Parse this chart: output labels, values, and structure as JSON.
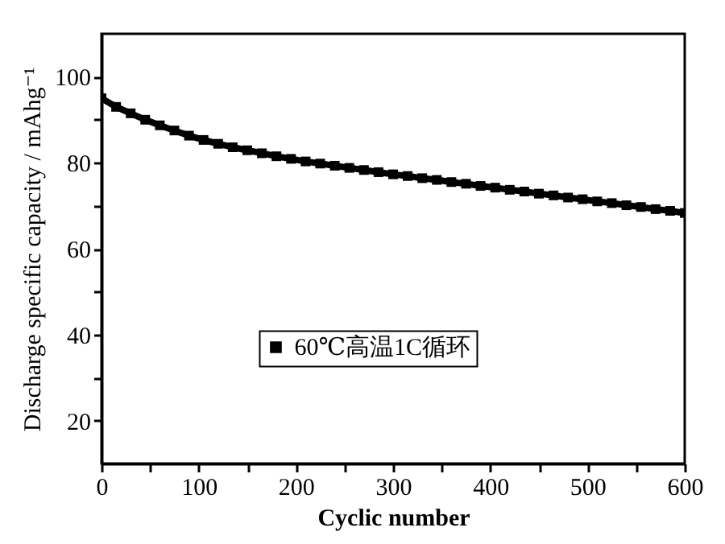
{
  "chart_data": {
    "type": "line",
    "xlabel": "Cyclic number",
    "ylabel": "Discharge specific capacity / mAhg⁻¹",
    "x": [
      0,
      15,
      30,
      45,
      60,
      75,
      90,
      105,
      120,
      135,
      150,
      165,
      180,
      195,
      210,
      225,
      240,
      255,
      270,
      285,
      300,
      315,
      330,
      345,
      360,
      375,
      390,
      405,
      420,
      435,
      450,
      465,
      480,
      495,
      510,
      525,
      540,
      555,
      570,
      585,
      600
    ],
    "series": [
      {
        "name": "60℃高温1C循环",
        "color": "#000000",
        "values": [
          95,
          93,
          91.5,
          90,
          88.7,
          87.5,
          86.3,
          85.3,
          84.4,
          83.6,
          82.9,
          82.2,
          81.5,
          80.9,
          80.3,
          79.8,
          79.3,
          78.8,
          78.3,
          77.8,
          77.3,
          76.9,
          76.4,
          76.0,
          75.5,
          75.1,
          74.6,
          74.2,
          73.7,
          73.3,
          72.8,
          72.4,
          71.9,
          71.5,
          71.0,
          70.6,
          70.1,
          69.7,
          69.2,
          68.8,
          68.3
        ]
      }
    ],
    "xlim": [
      0,
      600
    ],
    "ylim": [
      10,
      110
    ],
    "xticks": [
      0,
      {
        "value": 50,
        "label": null
      },
      100,
      {
        "value": 150,
        "label": null
      },
      200,
      {
        "value": 250,
        "label": null
      },
      300,
      {
        "value": 350,
        "label": null
      },
      400,
      {
        "value": 450,
        "label": null
      },
      500,
      {
        "value": 550,
        "label": null
      },
      600
    ],
    "yticks": [
      20,
      {
        "value": 30,
        "label": null
      },
      40,
      {
        "value": 50,
        "label": null
      },
      60,
      {
        "value": 70,
        "label": null
      },
      80,
      {
        "value": 90,
        "label": null
      },
      100
    ],
    "marker": "square",
    "line_style": "solid",
    "legend": "center",
    "grid": false
  }
}
